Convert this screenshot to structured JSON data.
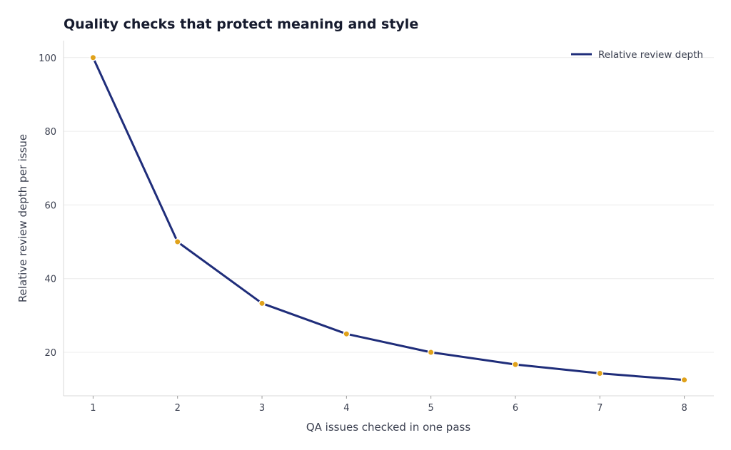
{
  "chart_data": {
    "type": "line",
    "title": "Quality checks that protect meaning and style",
    "xlabel": "QA issues checked in one pass",
    "ylabel": "Relative review depth per issue",
    "x": [
      1,
      2,
      3,
      4,
      5,
      6,
      7,
      8
    ],
    "series": [
      {
        "name": "Relative review depth",
        "values": [
          100,
          50,
          33.3,
          25,
          20,
          16.7,
          14.3,
          12.5
        ]
      }
    ],
    "xlim": [
      0.65,
      8.35
    ],
    "ylim": [
      8.2,
      104.6
    ],
    "xticks": [
      "1",
      "2",
      "3",
      "4",
      "5",
      "6",
      "7",
      "8"
    ],
    "yticks": [
      "20",
      "40",
      "60",
      "80",
      "100"
    ],
    "grid": "horizontal",
    "legend": "top-right",
    "colors": {
      "line": "#1f2d7a",
      "marker": "#e0a21b",
      "grid": "#ececec",
      "axis": "#d9d9d9"
    }
  }
}
